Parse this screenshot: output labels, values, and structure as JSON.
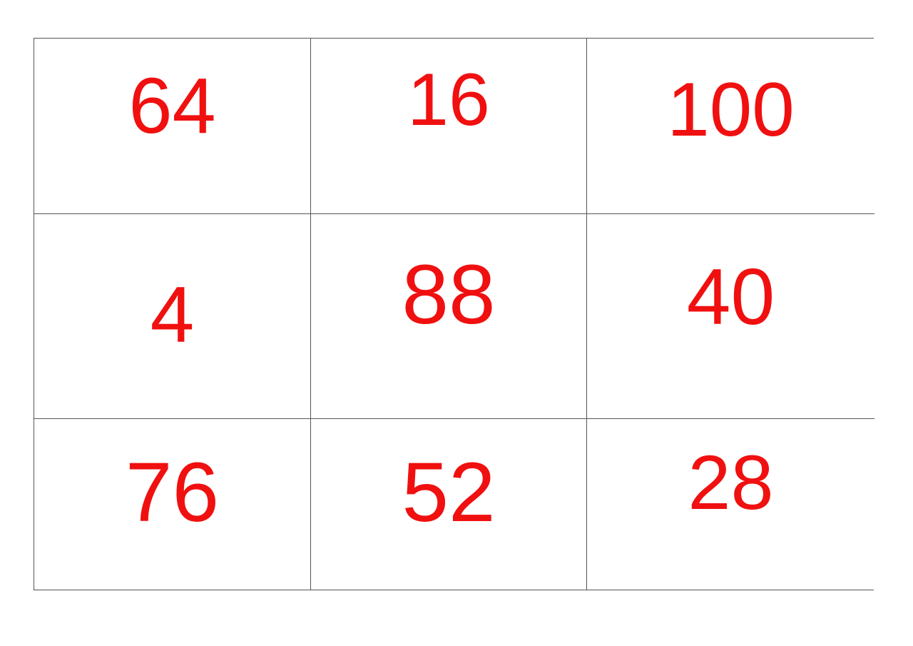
{
  "grid": {
    "rows": [
      [
        "64",
        "16",
        "100"
      ],
      [
        "4",
        "88",
        "40"
      ],
      [
        "76",
        "52",
        "28"
      ]
    ],
    "colors": {
      "number_color": "#f01010",
      "line_color": "#555555",
      "background": "#ffffff"
    }
  }
}
